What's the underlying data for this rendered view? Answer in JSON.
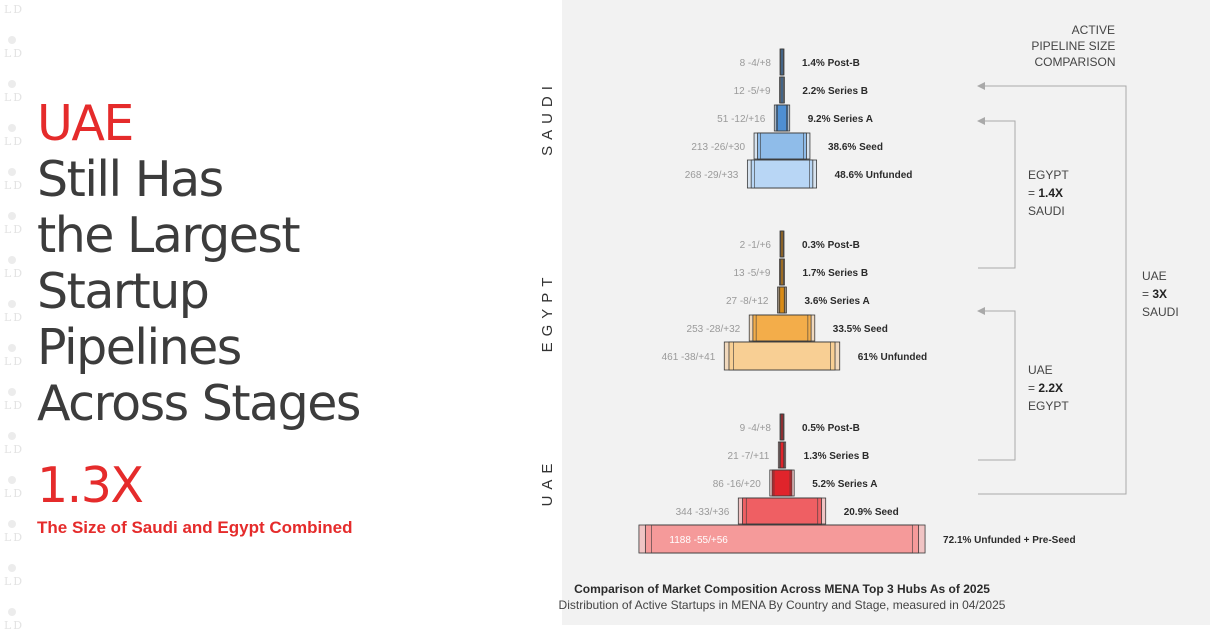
{
  "headline": {
    "accent": "UAE",
    "lines": [
      "Still Has",
      "the Largest",
      "Startup",
      "Pipelines",
      "Across Stages"
    ]
  },
  "big_stat": {
    "value": "1.3X",
    "caption": "The Size of Saudi and Egypt Combined"
  },
  "watermark": {
    "letters": "LD",
    "count": 15
  },
  "comparison": {
    "title_lines": [
      "ACTIVE",
      "PIPELINE SIZE",
      "COMPARISON"
    ],
    "egypt_saudi": {
      "line1": "EGYPT",
      "eq": "= ",
      "ratio": "1.4X",
      "line3": "SAUDI"
    },
    "uae_egypt": {
      "line1": "UAE",
      "eq": "= ",
      "ratio": "2.2X",
      "line3": "EGYPT"
    },
    "uae_saudi": {
      "line1": "UAE",
      "eq": "= ",
      "ratio": "3X",
      "line3": "SAUDI"
    }
  },
  "colors": {
    "saudi": {
      "light": "#b8d6f5",
      "mid": "#8fbce9",
      "dark": "#4f8fd2",
      "range": "#d7e3ef"
    },
    "egypt": {
      "light": "#f8cf94",
      "mid": "#f3ad4a",
      "dark": "#d98b17",
      "range": "#f1d9bd"
    },
    "uae": {
      "light": "#f59a9a",
      "mid": "#ef5f63",
      "dark": "#e0242b",
      "range": "#f0c4c4"
    },
    "accent": "#e52b2b"
  },
  "chart_data": {
    "type": "funnel",
    "title": "Comparison of Market Composition Across MENA Top 3 Hubs As of 2025",
    "subtitle": "Distribution of Active Startups in MENA By Country and Stage, measured in 04/2025",
    "countries": [
      {
        "name": "SAUDI",
        "stages": [
          {
            "stage": "Post-B",
            "count": 8,
            "low": -4,
            "high": 8,
            "count_label": "8 -4/+8",
            "pct": 1.4,
            "pct_label": "1.4% Post-B"
          },
          {
            "stage": "Series B",
            "count": 12,
            "low": -5,
            "high": 9,
            "count_label": "12 -5/+9",
            "pct": 2.2,
            "pct_label": "2.2% Series B"
          },
          {
            "stage": "Series A",
            "count": 51,
            "low": -12,
            "high": 16,
            "count_label": "51 -12/+16",
            "pct": 9.2,
            "pct_label": "9.2% Series A"
          },
          {
            "stage": "Seed",
            "count": 213,
            "low": -26,
            "high": 30,
            "count_label": "213 -26/+30",
            "pct": 38.6,
            "pct_label": "38.6% Seed"
          },
          {
            "stage": "Unfunded",
            "count": 268,
            "low": -29,
            "high": 33,
            "count_label": "268 -29/+33",
            "pct": 48.6,
            "pct_label": "48.6% Unfunded"
          }
        ]
      },
      {
        "name": "EGYPT",
        "stages": [
          {
            "stage": "Post-B",
            "count": 2,
            "low": -1,
            "high": 6,
            "count_label": "2 -1/+6",
            "pct": 0.3,
            "pct_label": "0.3% Post-B"
          },
          {
            "stage": "Series B",
            "count": 13,
            "low": -5,
            "high": 9,
            "count_label": "13 -5/+9",
            "pct": 1.7,
            "pct_label": "1.7% Series B"
          },
          {
            "stage": "Series A",
            "count": 27,
            "low": -8,
            "high": 12,
            "count_label": "27 -8/+12",
            "pct": 3.6,
            "pct_label": "3.6% Series A"
          },
          {
            "stage": "Seed",
            "count": 253,
            "low": -28,
            "high": 32,
            "count_label": "253 -28/+32",
            "pct": 33.5,
            "pct_label": "33.5% Seed"
          },
          {
            "stage": "Unfunded",
            "count": 461,
            "low": -38,
            "high": 41,
            "count_label": "461 -38/+41",
            "pct": 61,
            "pct_label": "61% Unfunded"
          }
        ]
      },
      {
        "name": "UAE",
        "stages": [
          {
            "stage": "Post-B",
            "count": 9,
            "low": -4,
            "high": 8,
            "count_label": "9 -4/+8",
            "pct": 0.5,
            "pct_label": "0.5% Post-B"
          },
          {
            "stage": "Series B",
            "count": 21,
            "low": -7,
            "high": 11,
            "count_label": "21 -7/+11",
            "pct": 1.3,
            "pct_label": "1.3% Series B"
          },
          {
            "stage": "Series A",
            "count": 86,
            "low": -16,
            "high": 20,
            "count_label": "86 -16/+20",
            "pct": 5.2,
            "pct_label": "5.2% Series A"
          },
          {
            "stage": "Seed",
            "count": 344,
            "low": -33,
            "high": 36,
            "count_label": "344 -33/+36",
            "pct": 20.9,
            "pct_label": "20.9% Seed"
          },
          {
            "stage": "Unfunded + Pre-Seed",
            "count": 1188,
            "low": -55,
            "high": 56,
            "count_label": "1188 -55/+56",
            "pct": 72.1,
            "pct_label": "72.1% Unfunded + Pre-Seed"
          }
        ]
      }
    ]
  }
}
